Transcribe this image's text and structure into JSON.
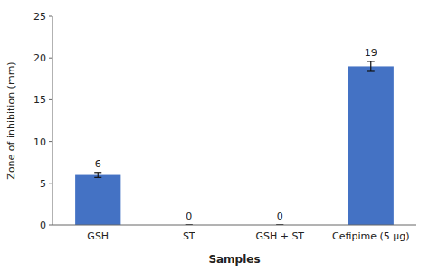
{
  "chart_data": {
    "type": "bar",
    "categories": [
      "GSH",
      "ST",
      "GSH + ST",
      "Cefipime (5 μg)"
    ],
    "values": [
      6,
      0,
      0,
      19
    ],
    "errors": [
      0.3,
      0,
      0,
      0.6
    ],
    "color": "#4472C4",
    "xlabel": "Samples",
    "ylabel": "Zone of inhibition (mm)",
    "ylim": [
      0,
      25
    ],
    "yticks": [
      0,
      5,
      10,
      15,
      20,
      25
    ],
    "grid": false,
    "data_labels": true
  }
}
